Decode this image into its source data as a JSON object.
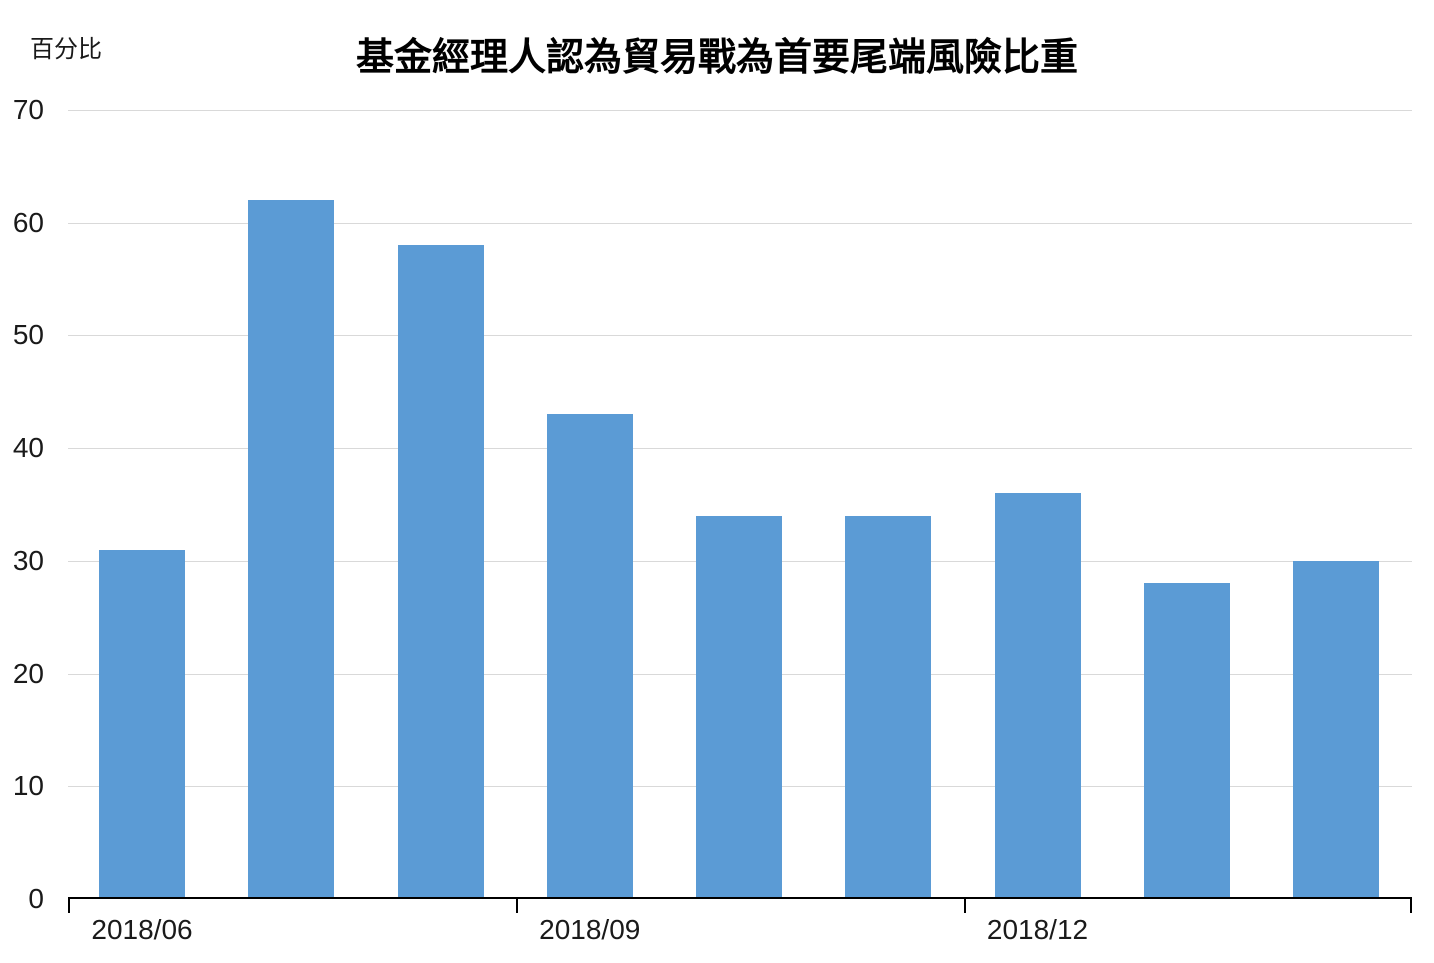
{
  "chart_data": {
    "type": "bar",
    "title": "基金經理人認為貿易戰為首要尾端風險比重",
    "ylabel": "百分比",
    "xlabel": "",
    "values": [
      31,
      62,
      58,
      43,
      34,
      34,
      36,
      28,
      30
    ],
    "x_ticks": [
      {
        "label": "2018/06",
        "bar_index": 0
      },
      {
        "label": "2018/09",
        "bar_index": 3
      },
      {
        "label": "2018/12",
        "bar_index": 6
      }
    ],
    "y_ticks": [
      0,
      10,
      20,
      30,
      40,
      50,
      60,
      70
    ],
    "ylim": [
      0,
      70
    ],
    "grid": true,
    "legend": "none",
    "colors": {
      "bar": "#5B9BD5",
      "gridline": "#D9D9D9",
      "axis": "#000000",
      "text": "#1A1A1A",
      "background": "#FFFFFF"
    }
  }
}
